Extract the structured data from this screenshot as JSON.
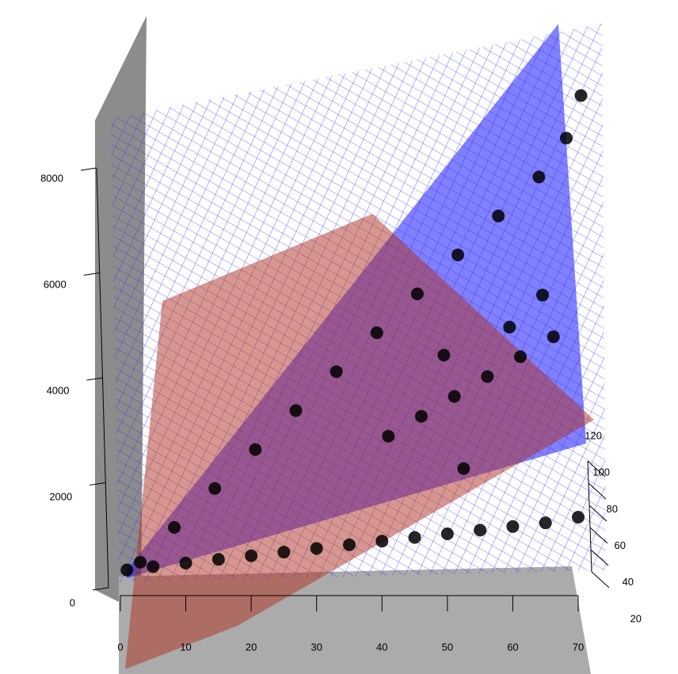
{
  "chart_data": {
    "type": "scatter3d",
    "x": [
      1,
      5,
      10,
      15,
      20,
      25,
      30,
      35,
      40,
      45,
      50,
      55,
      60,
      65,
      70,
      3,
      8,
      14,
      20,
      26,
      32,
      38,
      44,
      50,
      56,
      62,
      66,
      68,
      40,
      45,
      50,
      55,
      60,
      65,
      48,
      58,
      63,
      52
    ],
    "y": [
      300,
      380,
      470,
      560,
      650,
      740,
      830,
      920,
      1010,
      1100,
      1190,
      1280,
      1370,
      1460,
      1600,
      400,
      900,
      1500,
      2100,
      2700,
      3300,
      3900,
      4500,
      5100,
      5700,
      6300,
      6900,
      7500,
      1800,
      2200,
      2600,
      3000,
      3400,
      3800,
      2900,
      3500,
      4200,
      1900
    ],
    "z": [
      20,
      20,
      20,
      20,
      20,
      20,
      20,
      20,
      20,
      20,
      20,
      20,
      20,
      20,
      20,
      22,
      30,
      38,
      46,
      54,
      62,
      70,
      78,
      86,
      94,
      102,
      110,
      120,
      60,
      62,
      64,
      66,
      68,
      70,
      80,
      82,
      84,
      40
    ],
    "color": "#000000",
    "xlim": [
      0,
      70
    ],
    "xticks": [
      0,
      10,
      20,
      30,
      40,
      50,
      60,
      70
    ],
    "ylim": [
      0,
      8000
    ],
    "yticks": [
      0,
      2000,
      4000,
      6000,
      8000
    ],
    "zlim": [
      20,
      120
    ],
    "zticks": [
      20,
      40,
      60,
      80,
      100,
      120
    ]
  }
}
